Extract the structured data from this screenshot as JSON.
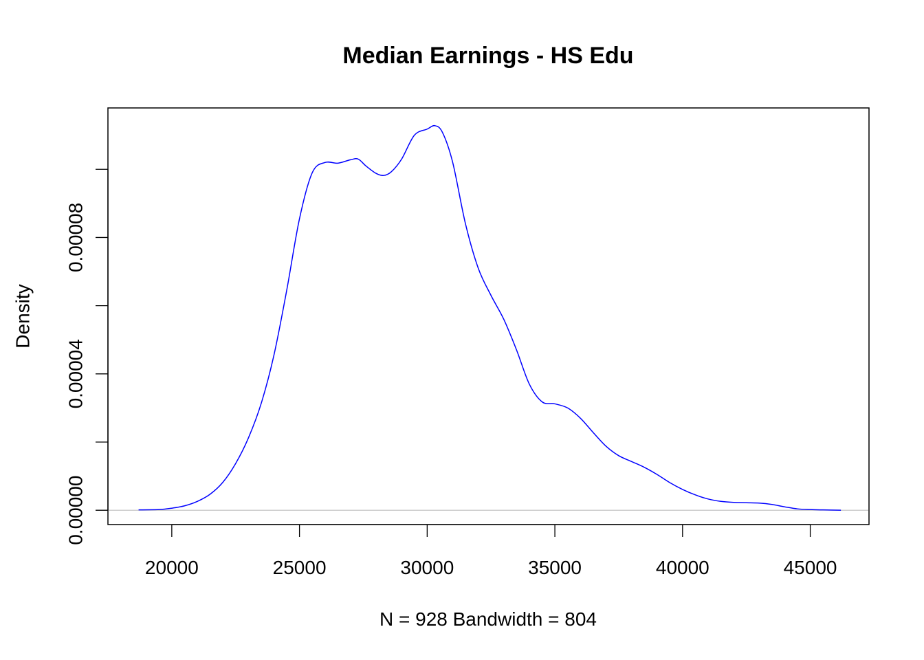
{
  "chart_data": {
    "type": "line",
    "title": "Median Earnings - HS Edu",
    "xlabel": "N = 928   Bandwidth = 804",
    "ylabel": "Density",
    "xlim": [
      17500,
      47300
    ],
    "ylim": [
      -4.2e-06,
      0.000118
    ],
    "x_ticks": [
      20000,
      25000,
      30000,
      35000,
      40000,
      45000
    ],
    "x_tick_labels": [
      "20000",
      "25000",
      "30000",
      "35000",
      "40000",
      "45000"
    ],
    "y_ticks": [
      0,
      2e-05,
      4e-05,
      6e-05,
      8e-05,
      0.0001
    ],
    "y_tick_labels": [
      "0.00000",
      "0.00004",
      "0.00008"
    ],
    "y_tick_labels_at": [
      0,
      4e-05,
      8e-05
    ],
    "baseline": {
      "y": 0,
      "color": "#bebebe"
    },
    "grid": false,
    "series": [
      {
        "color": "#0000ff",
        "x": [
          18700,
          19500,
          20000,
          20500,
          21000,
          21500,
          22000,
          22500,
          23000,
          23500,
          24000,
          24500,
          25000,
          25500,
          26000,
          26500,
          27000,
          27300,
          27600,
          28000,
          28300,
          28600,
          29000,
          29500,
          30000,
          30300,
          30600,
          31000,
          31500,
          32000,
          32500,
          33000,
          33500,
          34000,
          34500,
          35000,
          35500,
          36000,
          36500,
          37000,
          37500,
          38000,
          38500,
          39000,
          39500,
          40000,
          40500,
          41000,
          41500,
          42000,
          42500,
          43000,
          43500,
          44000,
          44500,
          45000,
          45500,
          46200
        ],
        "y": [
          1e-07,
          2e-07,
          6e-07,
          1.3e-06,
          2.6e-06,
          4.7e-06,
          8.2e-06,
          1.37e-05,
          2.12e-05,
          3.13e-05,
          4.55e-05,
          6.45e-05,
          8.55e-05,
          9.9e-05,
          0.000102,
          0.0001018,
          0.0001028,
          0.000103,
          0.000101,
          9.88e-05,
          9.82e-05,
          9.93e-05,
          0.000103,
          0.00011,
          0.0001118,
          0.0001128,
          0.0001108,
          0.000102,
          8.4e-05,
          7.1e-05,
          6.3e-05,
          5.6e-05,
          4.7e-05,
          3.7e-05,
          3.18e-05,
          3.12e-05,
          3e-05,
          2.7e-05,
          2.28e-05,
          1.88e-05,
          1.6e-05,
          1.43e-05,
          1.26e-05,
          1.05e-05,
          8.1e-06,
          6.1e-06,
          4.5e-06,
          3.3e-06,
          2.6e-06,
          2.3e-06,
          2.2e-06,
          2.1e-06,
          1.7e-06,
          1e-06,
          4e-07,
          2e-07,
          1e-07,
          0.0
        ]
      }
    ]
  }
}
